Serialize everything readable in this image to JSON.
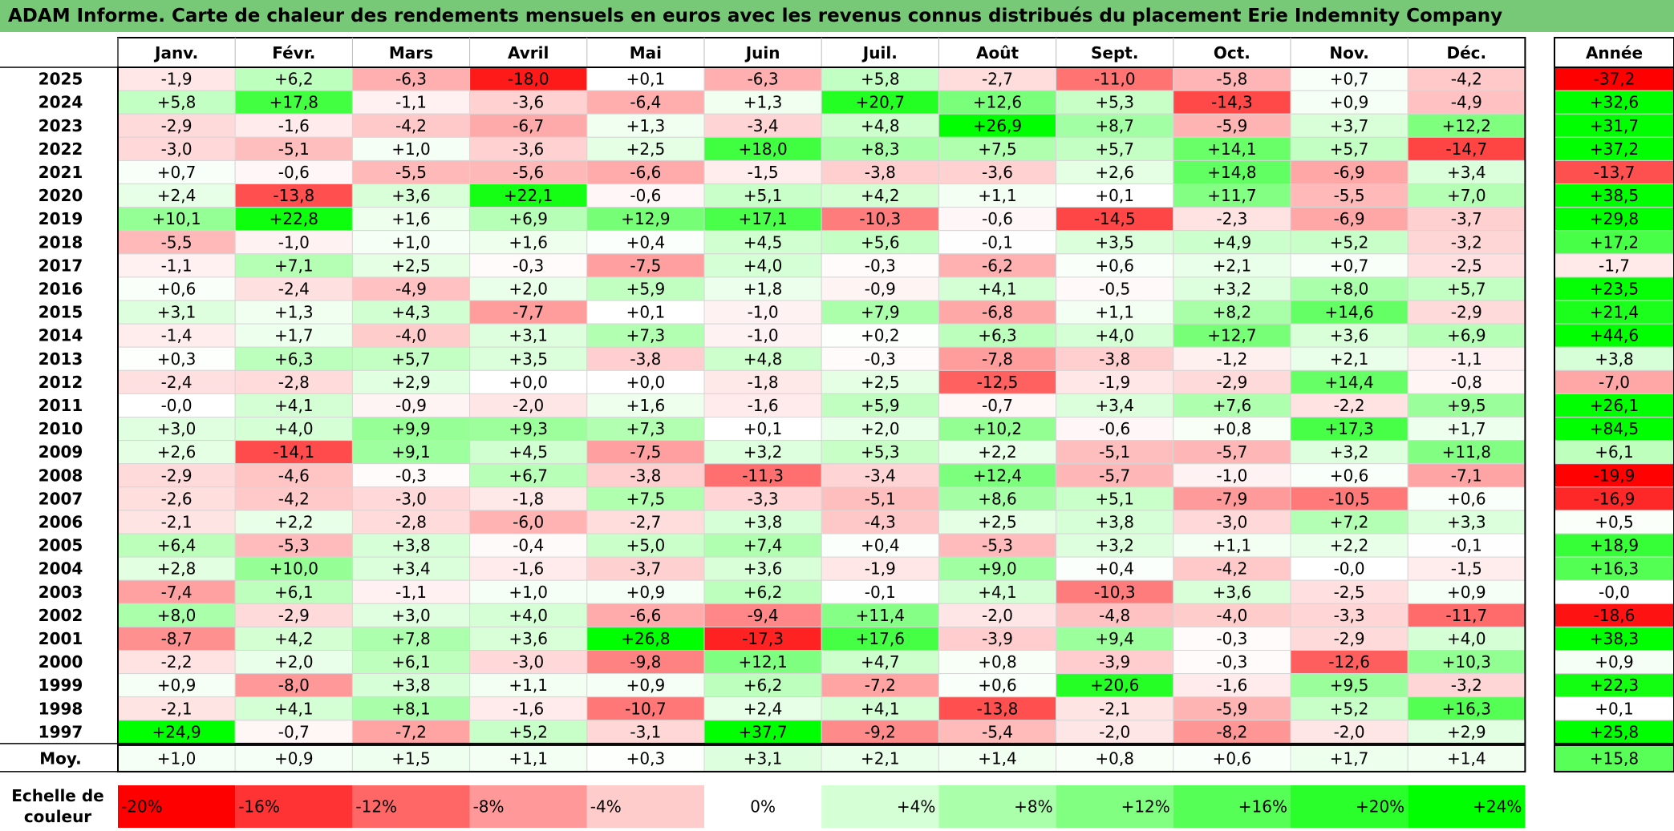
{
  "title": "ADAM Informe. Carte de chaleur des rendements mensuels en euros avec les revenus connus distribués du placement Erie Indemnity Company",
  "chart_data": {
    "type": "heatmap",
    "months": [
      "Janv.",
      "Févr.",
      "Mars",
      "Avril",
      "Mai",
      "Juin",
      "Juil.",
      "Août",
      "Sept.",
      "Oct.",
      "Nov.",
      "Déc."
    ],
    "year_header": "Année",
    "rows": [
      {
        "year": "2025",
        "values": [
          -1.9,
          6.2,
          -6.3,
          -18.0,
          0.1,
          -6.3,
          5.8,
          -2.7,
          -11.0,
          -5.8,
          0.7,
          -4.2
        ],
        "annual": -37.2
      },
      {
        "year": "2024",
        "values": [
          5.8,
          17.8,
          -1.1,
          -3.6,
          -6.4,
          1.3,
          20.7,
          12.6,
          5.3,
          -14.3,
          0.9,
          -4.9
        ],
        "annual": 32.6
      },
      {
        "year": "2023",
        "values": [
          -2.9,
          -1.6,
          -4.2,
          -6.7,
          1.3,
          -3.4,
          4.8,
          26.9,
          8.7,
          -5.9,
          3.7,
          12.2
        ],
        "annual": 31.7
      },
      {
        "year": "2022",
        "values": [
          -3.0,
          -5.1,
          1.0,
          -3.6,
          2.5,
          18.0,
          8.3,
          7.5,
          5.7,
          14.1,
          5.7,
          -14.7
        ],
        "annual": 37.2
      },
      {
        "year": "2021",
        "values": [
          0.7,
          -0.6,
          -5.5,
          -5.6,
          -6.6,
          -1.5,
          -3.8,
          -3.6,
          2.6,
          14.8,
          -6.9,
          3.4
        ],
        "annual": -13.7
      },
      {
        "year": "2020",
        "values": [
          2.4,
          -13.8,
          3.6,
          22.1,
          -0.6,
          5.1,
          4.2,
          1.1,
          0.1,
          11.7,
          -5.5,
          7.0
        ],
        "annual": 38.5
      },
      {
        "year": "2019",
        "values": [
          10.1,
          22.8,
          1.6,
          6.9,
          12.9,
          17.1,
          -10.3,
          -0.6,
          -14.5,
          -2.3,
          -6.9,
          -3.7
        ],
        "annual": 29.8
      },
      {
        "year": "2018",
        "values": [
          -5.5,
          -1.0,
          1.0,
          1.6,
          0.4,
          4.5,
          5.6,
          -0.1,
          3.5,
          4.9,
          5.2,
          -3.2
        ],
        "annual": 17.2
      },
      {
        "year": "2017",
        "values": [
          -1.1,
          7.1,
          2.5,
          -0.3,
          -7.5,
          4.0,
          -0.3,
          -6.2,
          0.6,
          2.1,
          0.7,
          -2.5
        ],
        "annual": -1.7
      },
      {
        "year": "2016",
        "values": [
          0.6,
          -2.4,
          -4.9,
          2.0,
          5.9,
          1.8,
          -0.9,
          4.1,
          -0.5,
          3.2,
          8.0,
          5.7
        ],
        "annual": 23.5
      },
      {
        "year": "2015",
        "values": [
          3.1,
          1.3,
          4.3,
          -7.7,
          0.1,
          -1.0,
          7.9,
          -6.8,
          1.1,
          8.2,
          14.6,
          -2.9
        ],
        "annual": 21.4
      },
      {
        "year": "2014",
        "values": [
          -1.4,
          1.7,
          -4.0,
          3.1,
          7.3,
          -1.0,
          0.2,
          6.3,
          4.0,
          12.7,
          3.6,
          6.9
        ],
        "annual": 44.6
      },
      {
        "year": "2013",
        "values": [
          0.3,
          6.3,
          5.7,
          3.5,
          -3.8,
          4.8,
          -0.3,
          -7.8,
          -3.8,
          -1.2,
          2.1,
          -1.1
        ],
        "annual": 3.8
      },
      {
        "year": "2012",
        "values": [
          -2.4,
          -2.8,
          2.9,
          0.0,
          0.0,
          -1.8,
          2.5,
          -12.5,
          -1.9,
          -2.9,
          14.4,
          -0.8
        ],
        "annual": -7.0
      },
      {
        "year": "2011",
        "values": [
          -0.0,
          4.1,
          -0.9,
          -2.0,
          1.6,
          -1.6,
          5.9,
          -0.7,
          3.4,
          7.6,
          -2.2,
          9.5
        ],
        "annual": 26.1
      },
      {
        "year": "2010",
        "values": [
          3.0,
          4.0,
          9.9,
          9.3,
          7.3,
          0.1,
          2.0,
          10.2,
          -0.6,
          0.8,
          17.3,
          1.7
        ],
        "annual": 84.5
      },
      {
        "year": "2009",
        "values": [
          2.6,
          -14.1,
          9.1,
          4.5,
          -7.5,
          3.2,
          5.3,
          2.2,
          -5.1,
          -5.7,
          3.2,
          11.8
        ],
        "annual": 6.1
      },
      {
        "year": "2008",
        "values": [
          -2.9,
          -4.6,
          -0.3,
          6.7,
          -3.8,
          -11.3,
          -3.4,
          12.4,
          -5.7,
          -1.0,
          0.6,
          -7.1
        ],
        "annual": -19.9
      },
      {
        "year": "2007",
        "values": [
          -2.6,
          -4.2,
          -3.0,
          -1.8,
          7.5,
          -3.3,
          -5.1,
          8.6,
          5.1,
          -7.9,
          -10.5,
          0.6
        ],
        "annual": -16.9
      },
      {
        "year": "2006",
        "values": [
          -2.1,
          2.2,
          -2.8,
          -6.0,
          -2.7,
          3.8,
          -4.3,
          2.5,
          3.8,
          -3.0,
          7.2,
          3.3
        ],
        "annual": 0.5
      },
      {
        "year": "2005",
        "values": [
          6.4,
          -5.3,
          3.8,
          -0.4,
          5.0,
          7.4,
          0.4,
          -5.3,
          3.2,
          1.1,
          2.2,
          -0.1
        ],
        "annual": 18.9
      },
      {
        "year": "2004",
        "values": [
          2.8,
          10.0,
          3.4,
          -1.6,
          -3.7,
          3.6,
          -1.9,
          9.0,
          0.4,
          -4.2,
          -0.0,
          -1.5
        ],
        "annual": 16.3
      },
      {
        "year": "2003",
        "values": [
          -7.4,
          6.1,
          -1.1,
          1.0,
          0.9,
          6.2,
          -0.1,
          4.1,
          -10.3,
          3.6,
          -2.5,
          0.9
        ],
        "annual": -0.0
      },
      {
        "year": "2002",
        "values": [
          8.0,
          -2.9,
          3.0,
          4.0,
          -6.6,
          -9.4,
          11.4,
          -2.0,
          -4.8,
          -4.0,
          -3.3,
          -11.7
        ],
        "annual": -18.6
      },
      {
        "year": "2001",
        "values": [
          -8.7,
          4.2,
          7.8,
          3.6,
          26.8,
          -17.3,
          17.6,
          -3.9,
          9.4,
          -0.3,
          -2.9,
          4.0
        ],
        "annual": 38.3
      },
      {
        "year": "2000",
        "values": [
          -2.2,
          2.0,
          6.1,
          -3.0,
          -9.8,
          12.1,
          4.7,
          0.8,
          -3.9,
          -0.3,
          -12.6,
          10.3
        ],
        "annual": 0.9
      },
      {
        "year": "1999",
        "values": [
          0.9,
          -8.0,
          3.8,
          1.1,
          0.9,
          6.2,
          -7.2,
          0.6,
          20.6,
          -1.6,
          9.5,
          -3.2
        ],
        "annual": 22.3
      },
      {
        "year": "1998",
        "values": [
          -2.1,
          4.1,
          8.1,
          -1.6,
          -10.7,
          2.4,
          4.1,
          -13.8,
          -2.1,
          -5.9,
          5.2,
          16.3
        ],
        "annual": 0.1
      },
      {
        "year": "1997",
        "values": [
          24.9,
          -0.7,
          -7.2,
          5.2,
          -3.1,
          37.7,
          -9.2,
          -5.4,
          -2.0,
          -8.2,
          -2.0,
          2.9
        ],
        "annual": 25.8
      }
    ],
    "average": {
      "label": "Moy.",
      "values": [
        1.0,
        0.9,
        1.5,
        1.1,
        0.3,
        3.1,
        2.1,
        1.4,
        0.8,
        0.6,
        1.7,
        1.4
      ],
      "annual": 15.8
    },
    "scale": {
      "label_line1": "Echelle de",
      "label_line2": "couleur",
      "stops": [
        {
          "label": "-20%",
          "value": -20,
          "color": "#ff0000"
        },
        {
          "label": "-16%",
          "value": -16,
          "color": "#ff3333"
        },
        {
          "label": "-12%",
          "value": -12,
          "color": "#ff6666"
        },
        {
          "label": "-8%",
          "value": -8,
          "color": "#ff9999"
        },
        {
          "label": "-4%",
          "value": -4,
          "color": "#ffcccc"
        },
        {
          "label": "0%",
          "value": 0,
          "color": "#ffffff"
        },
        {
          "label": "+4%",
          "value": 4,
          "color": "#d5ffd5"
        },
        {
          "label": "+8%",
          "value": 8,
          "color": "#aaffaa"
        },
        {
          "label": "+12%",
          "value": 12,
          "color": "#80ff80"
        },
        {
          "label": "+16%",
          "value": 16,
          "color": "#55ff55"
        },
        {
          "label": "+20%",
          "value": 20,
          "color": "#2bff2b"
        },
        {
          "label": "+24%",
          "value": 24,
          "color": "#00ff00"
        }
      ]
    }
  }
}
